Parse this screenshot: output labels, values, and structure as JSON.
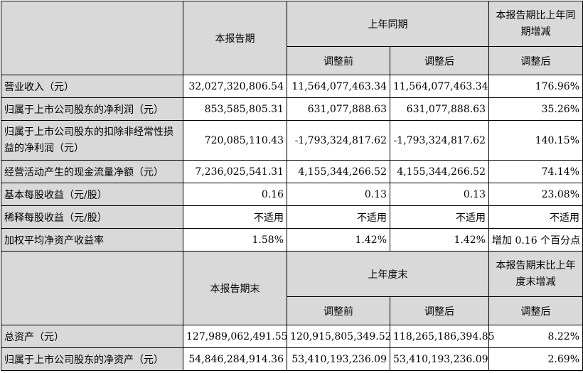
{
  "header_top": {
    "current_period": "本报告期",
    "last_year_same_period": "上年同期",
    "change_vs_last_year": "本报告期比上年同期增减",
    "before_adjustment": "调整前",
    "after_adjustment": "调整后",
    "change_after_adjustment": "调整后"
  },
  "income_rows": [
    {
      "label": "营业收入（元）",
      "current": "32,027,320,806.54",
      "before": "11,564,077,463.34",
      "after": "11,564,077,463.34",
      "change": "176.96%"
    },
    {
      "label": "归属于上市公司股东的净利润（元）",
      "current": "853,585,805.31",
      "before": "631,077,888.63",
      "after": "631,077,888.63",
      "change": "35.26%"
    },
    {
      "label": "归属于上市公司股东的扣除非经常性损益的净利润（元）",
      "current": "720,085,110.43",
      "before": "-1,793,324,817.62",
      "after": "-1,793,324,817.62",
      "change": "140.15%"
    },
    {
      "label": "经营活动产生的现金流量净额（元）",
      "current": "7,236,025,541.31",
      "before": "4,155,344,266.52",
      "after": "4,155,344,266.52",
      "change": "74.14%"
    },
    {
      "label": "基本每股收益（元/股）",
      "current": "0.16",
      "before": "0.13",
      "after": "0.13",
      "change": "23.08%"
    },
    {
      "label": "稀释每股收益（元/股）",
      "current": "不适用",
      "before": "不适用",
      "after": "不适用",
      "change": "不适用"
    },
    {
      "label": "加权平均净资产收益率",
      "current": "1.58%",
      "before": "1.42%",
      "after": "1.42%",
      "change": "增加 0.16 个百分点"
    }
  ],
  "header_bottom": {
    "current_period_end": "本报告期末",
    "last_year_end": "上年度末",
    "change_vs_last_year_end": "本报告期末比上年度末增减",
    "before_adjustment": "调整前",
    "after_adjustment": "调整后",
    "change_after_adjustment": "调整后"
  },
  "balance_rows": [
    {
      "label": "总资产（元）",
      "current": "127,989,062,491.55",
      "before": "120,915,805,349.52",
      "after": "118,265,186,394.85",
      "change": "8.22%"
    },
    {
      "label": "归属于上市公司股东的净资产（元）",
      "current": "54,846,284,914.36",
      "before": "53,410,193,236.09",
      "after": "53,410,193,236.09",
      "change": "2.69%"
    }
  ]
}
